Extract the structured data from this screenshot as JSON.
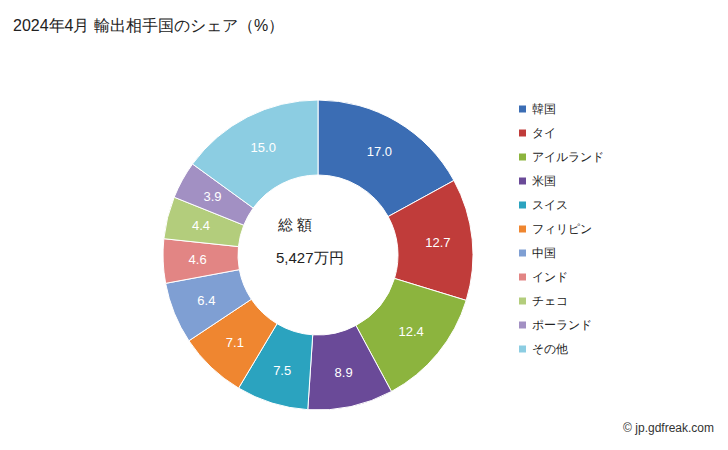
{
  "chart_data": {
    "type": "pie",
    "title": "2024年4月 輸出相手国のシェア（%）",
    "categories": [
      "韓国",
      "タイ",
      "アイルランド",
      "米国",
      "スイス",
      "フィリピン",
      "中国",
      "インド",
      "チェコ",
      "ポーランド",
      "その他"
    ],
    "values": [
      17.0,
      12.7,
      12.4,
      8.9,
      7.5,
      7.1,
      6.4,
      4.6,
      4.4,
      3.9,
      15.0
    ],
    "value_labels": [
      "17.0",
      "12.7",
      "12.4",
      "8.9",
      "7.5",
      "7.1",
      "6.4",
      "4.6",
      "4.4",
      "3.9",
      "15.0"
    ],
    "colors": [
      "#3b6db4",
      "#c03c3a",
      "#8cb43e",
      "#6a4a98",
      "#2ba3bf",
      "#ef8630",
      "#7f9fd3",
      "#e28584",
      "#b3cd7c",
      "#a290c3",
      "#8ccde2"
    ],
    "data_labels": true,
    "legend": "right",
    "center_text": [
      "総 額",
      "5,427万円"
    ],
    "credit": "© jp.gdfreak.com"
  }
}
